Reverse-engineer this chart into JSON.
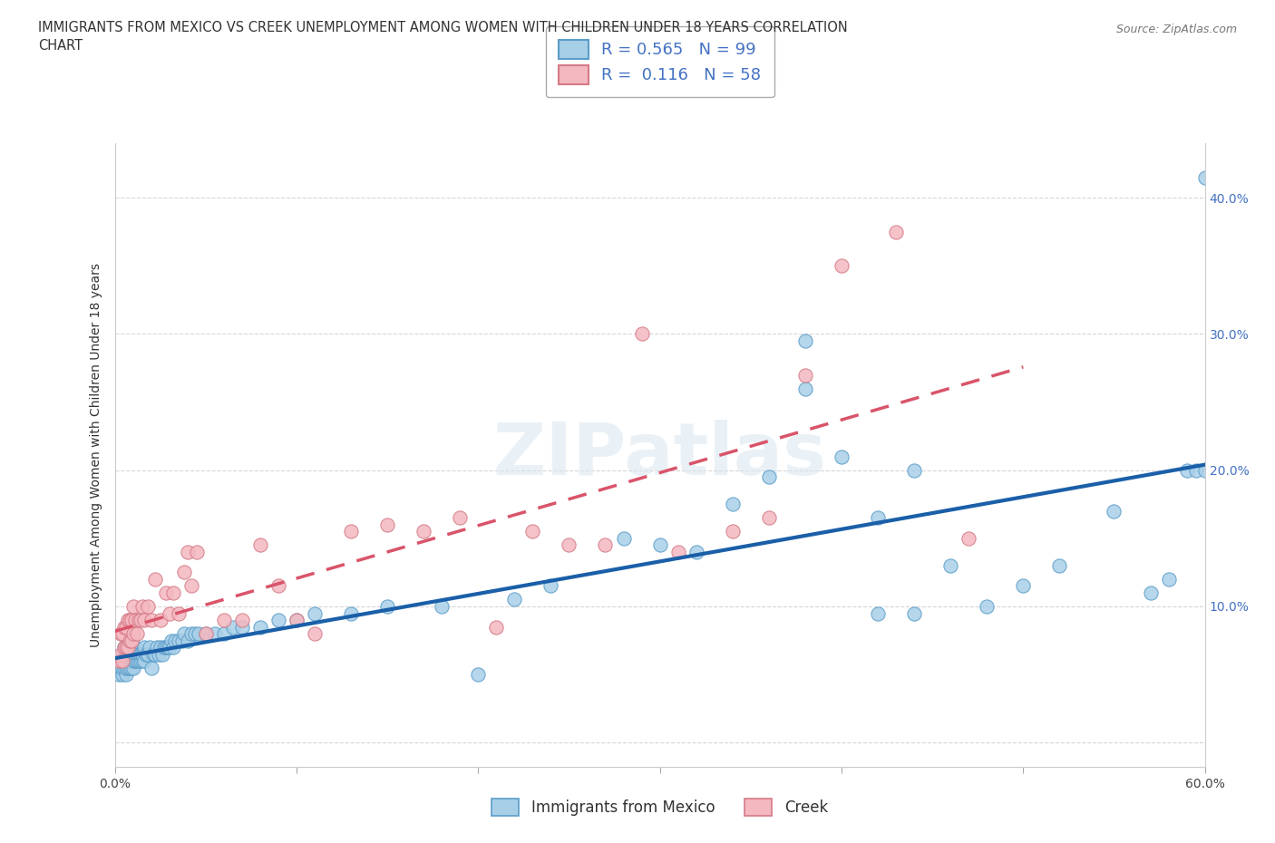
{
  "title": "IMMIGRANTS FROM MEXICO VS CREEK UNEMPLOYMENT AMONG WOMEN WITH CHILDREN UNDER 18 YEARS CORRELATION\nCHART",
  "source_text": "Source: ZipAtlas.com",
  "ylabel": "Unemployment Among Women with Children Under 18 years",
  "xlim": [
    0.0,
    0.6
  ],
  "ylim": [
    -0.018,
    0.44
  ],
  "xticks": [
    0.0,
    0.1,
    0.2,
    0.3,
    0.4,
    0.5,
    0.6
  ],
  "yticks": [
    0.0,
    0.1,
    0.2,
    0.3,
    0.4
  ],
  "yticklabels_right": [
    "",
    "10.0%",
    "20.0%",
    "30.0%",
    "40.0%"
  ],
  "grid_color": "#cccccc",
  "watermark": "ZIPatlas",
  "blue_scatter_color": "#a8cfe8",
  "blue_edge_color": "#5b9dc9",
  "pink_scatter_color": "#f4b8c0",
  "pink_edge_color": "#d47a86",
  "blue_line_color": "#1a5fa8",
  "pink_line_color": "#d9546a",
  "R_blue": 0.565,
  "N_blue": 99,
  "R_pink": 0.116,
  "N_pink": 58,
  "legend_label_blue": "Immigrants from Mexico",
  "legend_label_pink": "Creek",
  "blue_x": [
    0.002,
    0.003,
    0.003,
    0.004,
    0.004,
    0.004,
    0.005,
    0.005,
    0.005,
    0.005,
    0.006,
    0.006,
    0.006,
    0.007,
    0.007,
    0.007,
    0.008,
    0.008,
    0.008,
    0.009,
    0.009,
    0.009,
    0.01,
    0.01,
    0.01,
    0.011,
    0.011,
    0.012,
    0.012,
    0.013,
    0.013,
    0.014,
    0.014,
    0.015,
    0.015,
    0.016,
    0.016,
    0.017,
    0.018,
    0.019,
    0.02,
    0.021,
    0.022,
    0.023,
    0.024,
    0.025,
    0.026,
    0.027,
    0.028,
    0.029,
    0.03,
    0.031,
    0.032,
    0.033,
    0.035,
    0.037,
    0.038,
    0.04,
    0.042,
    0.044,
    0.046,
    0.05,
    0.055,
    0.06,
    0.065,
    0.07,
    0.08,
    0.09,
    0.1,
    0.11,
    0.13,
    0.15,
    0.18,
    0.2,
    0.22,
    0.24,
    0.28,
    0.3,
    0.32,
    0.34,
    0.36,
    0.38,
    0.4,
    0.42,
    0.44,
    0.46,
    0.48,
    0.5,
    0.52,
    0.55,
    0.57,
    0.58,
    0.59,
    0.595,
    0.6,
    0.6,
    0.38,
    0.42,
    0.44
  ],
  "blue_y": [
    0.05,
    0.055,
    0.06,
    0.05,
    0.055,
    0.065,
    0.055,
    0.06,
    0.065,
    0.07,
    0.05,
    0.055,
    0.065,
    0.055,
    0.06,
    0.07,
    0.055,
    0.06,
    0.065,
    0.055,
    0.06,
    0.07,
    0.055,
    0.06,
    0.065,
    0.06,
    0.07,
    0.06,
    0.065,
    0.06,
    0.065,
    0.06,
    0.065,
    0.06,
    0.065,
    0.06,
    0.07,
    0.065,
    0.065,
    0.07,
    0.055,
    0.065,
    0.065,
    0.07,
    0.065,
    0.07,
    0.065,
    0.07,
    0.07,
    0.07,
    0.07,
    0.075,
    0.07,
    0.075,
    0.075,
    0.075,
    0.08,
    0.075,
    0.08,
    0.08,
    0.08,
    0.08,
    0.08,
    0.08,
    0.085,
    0.085,
    0.085,
    0.09,
    0.09,
    0.095,
    0.095,
    0.1,
    0.1,
    0.05,
    0.105,
    0.115,
    0.15,
    0.145,
    0.14,
    0.175,
    0.195,
    0.26,
    0.21,
    0.165,
    0.2,
    0.13,
    0.1,
    0.115,
    0.13,
    0.17,
    0.11,
    0.12,
    0.2,
    0.2,
    0.415,
    0.2,
    0.295,
    0.095,
    0.095
  ],
  "pink_x": [
    0.002,
    0.003,
    0.003,
    0.004,
    0.004,
    0.005,
    0.005,
    0.006,
    0.006,
    0.007,
    0.007,
    0.008,
    0.008,
    0.009,
    0.009,
    0.01,
    0.01,
    0.011,
    0.012,
    0.013,
    0.014,
    0.015,
    0.016,
    0.018,
    0.02,
    0.022,
    0.025,
    0.028,
    0.03,
    0.032,
    0.035,
    0.038,
    0.04,
    0.042,
    0.045,
    0.05,
    0.06,
    0.07,
    0.08,
    0.09,
    0.1,
    0.11,
    0.13,
    0.15,
    0.17,
    0.19,
    0.21,
    0.23,
    0.25,
    0.27,
    0.29,
    0.31,
    0.34,
    0.36,
    0.38,
    0.4,
    0.43,
    0.47
  ],
  "pink_y": [
    0.06,
    0.065,
    0.08,
    0.06,
    0.08,
    0.07,
    0.085,
    0.07,
    0.085,
    0.07,
    0.09,
    0.075,
    0.09,
    0.075,
    0.09,
    0.08,
    0.1,
    0.09,
    0.08,
    0.09,
    0.09,
    0.1,
    0.09,
    0.1,
    0.09,
    0.12,
    0.09,
    0.11,
    0.095,
    0.11,
    0.095,
    0.125,
    0.14,
    0.115,
    0.14,
    0.08,
    0.09,
    0.09,
    0.145,
    0.115,
    0.09,
    0.08,
    0.155,
    0.16,
    0.155,
    0.165,
    0.085,
    0.155,
    0.145,
    0.145,
    0.3,
    0.14,
    0.155,
    0.165,
    0.27,
    0.35,
    0.375,
    0.15
  ]
}
